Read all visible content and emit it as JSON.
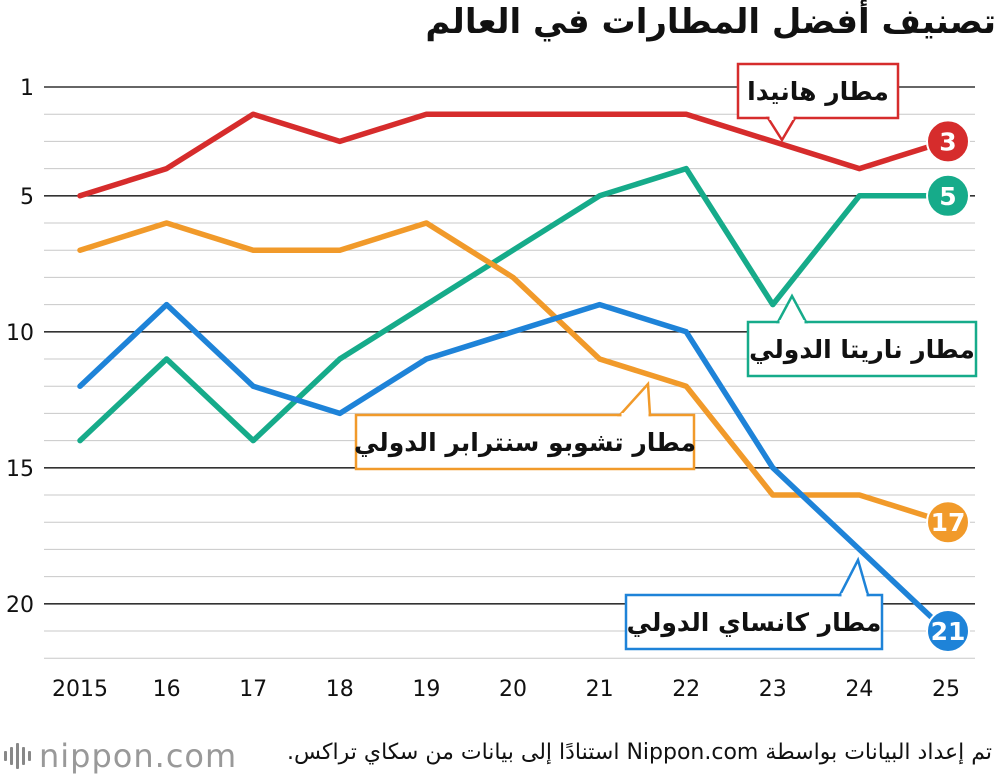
{
  "page": {
    "title": "تصنيف أفضل المطارات في العالم",
    "source": "تم إعداد البيانات بواسطة Nippon.com استنادًا إلى بيانات من سكاي تراكس.",
    "logo_text": "nippon.com"
  },
  "chart_data": {
    "type": "line",
    "title": "تصنيف أفضل المطارات في العالم",
    "xlabel": "",
    "ylabel": "",
    "x": [
      "2015",
      "16",
      "17",
      "18",
      "19",
      "20",
      "21",
      "22",
      "23",
      "24",
      "25"
    ],
    "y_reversed": true,
    "ylim": [
      1,
      22
    ],
    "yticks": [
      "1",
      "5",
      "10",
      "15",
      "20"
    ],
    "grid": true,
    "series": [
      {
        "name": "مطار هانيدا",
        "color": "#d62c2c",
        "values": [
          5,
          4,
          2,
          3,
          2,
          2,
          2,
          2,
          3,
          4,
          3
        ],
        "end_label": "3"
      },
      {
        "name": "مطار ناريتا الدولي",
        "color": "#16ab8a",
        "values": [
          14,
          11,
          14,
          11,
          9,
          7,
          5,
          4,
          9,
          5,
          5
        ],
        "end_label": "5"
      },
      {
        "name": "مطار تشوبو سنترابر الدولي",
        "color": "#f19a2a",
        "values": [
          7,
          6,
          7,
          7,
          6,
          8,
          11,
          12,
          16,
          16,
          17
        ],
        "end_label": "17"
      },
      {
        "name": "مطار كانساي الدولي",
        "color": "#1e83d8",
        "values": [
          12,
          9,
          12,
          13,
          11,
          10,
          9,
          10,
          15,
          18,
          21
        ],
        "end_label": "21"
      }
    ],
    "labels_display": [
      "مطار هانيدا",
      "مطار ناريتا الدولي",
      "مطار تشوبو سنترابر الدولي",
      "مطار كانساي الدولي"
    ]
  }
}
